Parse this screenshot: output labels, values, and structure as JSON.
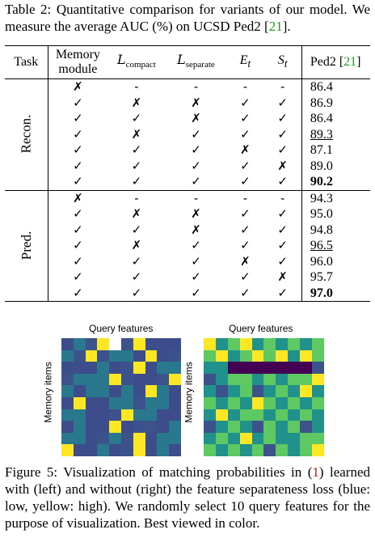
{
  "table_caption": {
    "label": "Table 2:",
    "text_before_cite": "Quantitative comparison for variants of our model. We measure the average AUC (%) on UCSD Ped2 [",
    "cite": "21",
    "text_after_cite": "]."
  },
  "table": {
    "headers": {
      "task": "Task",
      "memory_line1": "Memory",
      "memory_line2": "module",
      "compact_main": "L",
      "compact_sub": "compact",
      "separate_main": "L",
      "separate_sub": "separate",
      "e_main": "E",
      "e_sub": "t",
      "s_main": "S",
      "s_sub": "t",
      "ped2": "Ped2 [",
      "ped2_cite": "21",
      "ped2_close": "]"
    },
    "groups": [
      {
        "task": "Recon.",
        "rows": [
          {
            "memory": "✗",
            "compact": "-",
            "separate": "-",
            "e": "-",
            "s": "-",
            "ped2": "86.4",
            "style": ""
          },
          {
            "memory": "✓",
            "compact": "✗",
            "separate": "✗",
            "e": "✓",
            "s": "✓",
            "ped2": "86.9",
            "style": ""
          },
          {
            "memory": "✓",
            "compact": "✓",
            "separate": "✗",
            "e": "✓",
            "s": "✓",
            "ped2": "86.4",
            "style": ""
          },
          {
            "memory": "✓",
            "compact": "✗",
            "separate": "✓",
            "e": "✓",
            "s": "✓",
            "ped2": "89.3",
            "style": "second"
          },
          {
            "memory": "✓",
            "compact": "✓",
            "separate": "✓",
            "e": "✗",
            "s": "✓",
            "ped2": "87.1",
            "style": ""
          },
          {
            "memory": "✓",
            "compact": "✓",
            "separate": "✓",
            "e": "✓",
            "s": "✗",
            "ped2": "89.0",
            "style": ""
          },
          {
            "memory": "✓",
            "compact": "✓",
            "separate": "✓",
            "e": "✓",
            "s": "✓",
            "ped2": "90.2",
            "style": "best"
          }
        ]
      },
      {
        "task": "Pred.",
        "rows": [
          {
            "memory": "✗",
            "compact": "-",
            "separate": "-",
            "e": "-",
            "s": "-",
            "ped2": "94.3",
            "style": ""
          },
          {
            "memory": "✓",
            "compact": "✗",
            "separate": "✗",
            "e": "✓",
            "s": "✓",
            "ped2": "95.0",
            "style": ""
          },
          {
            "memory": "✓",
            "compact": "✓",
            "separate": "✗",
            "e": "✓",
            "s": "✓",
            "ped2": "94.8",
            "style": ""
          },
          {
            "memory": "✓",
            "compact": "✗",
            "separate": "✓",
            "e": "✓",
            "s": "✓",
            "ped2": "96.5",
            "style": "second"
          },
          {
            "memory": "✓",
            "compact": "✓",
            "separate": "✓",
            "e": "✗",
            "s": "✓",
            "ped2": "96.0",
            "style": ""
          },
          {
            "memory": "✓",
            "compact": "✓",
            "separate": "✓",
            "e": "✓",
            "s": "✗",
            "ped2": "95.7",
            "style": ""
          },
          {
            "memory": "✓",
            "compact": "✓",
            "separate": "✓",
            "e": "✓",
            "s": "✓",
            "ped2": "97.0",
            "style": "best"
          }
        ]
      }
    ]
  },
  "figure": {
    "left_heatmap": {
      "title": "Query features",
      "ylabel": "Memory items",
      "colorscale": [
        "#3d4c8a",
        "#2a788e",
        "#3b528b",
        "#fde725"
      ],
      "cells": [
        [
          0,
          1,
          2,
          3,
          4,
          2,
          3,
          0,
          0,
          0
        ],
        [
          1,
          2,
          3,
          2,
          1,
          1,
          0,
          3,
          0,
          2
        ],
        [
          0,
          0,
          0,
          1,
          0,
          2,
          3,
          0,
          1,
          1
        ],
        [
          2,
          1,
          1,
          1,
          3,
          2,
          0,
          0,
          2,
          3
        ],
        [
          1,
          0,
          1,
          1,
          0,
          1,
          0,
          3,
          1,
          0
        ],
        [
          0,
          3,
          0,
          0,
          1,
          1,
          2,
          1,
          1,
          0
        ],
        [
          1,
          1,
          0,
          0,
          2,
          3,
          1,
          1,
          0,
          0
        ],
        [
          0,
          1,
          0,
          0,
          3,
          0,
          2,
          2,
          0,
          1
        ],
        [
          1,
          1,
          0,
          2,
          1,
          2,
          3,
          0,
          1,
          1
        ],
        [
          3,
          0,
          0,
          1,
          0,
          2,
          3,
          0,
          1,
          0
        ]
      ]
    },
    "right_heatmap": {
      "title": "Query features",
      "ylabel": "Memory items",
      "colorscale": [
        "#440154",
        "#3b528b",
        "#21918c",
        "#5ec962",
        "#fde725"
      ],
      "cells": [
        [
          4,
          2,
          3,
          4,
          2,
          3,
          2,
          3,
          2,
          3
        ],
        [
          3,
          4,
          2,
          3,
          4,
          3,
          4,
          2,
          4,
          3
        ],
        [
          2,
          2,
          0,
          0,
          0,
          0,
          0,
          0,
          0,
          1
        ],
        [
          1,
          2,
          3,
          3,
          2,
          3,
          2,
          3,
          3,
          4
        ],
        [
          2,
          1,
          2,
          3,
          1,
          2,
          3,
          2,
          4,
          2
        ],
        [
          3,
          2,
          3,
          2,
          4,
          3,
          2,
          3,
          2,
          3
        ],
        [
          2,
          4,
          2,
          3,
          3,
          2,
          3,
          2,
          3,
          2
        ],
        [
          1,
          2,
          3,
          2,
          1,
          3,
          2,
          3,
          1,
          2
        ],
        [
          2,
          3,
          2,
          4,
          2,
          3,
          2,
          2,
          3,
          3
        ],
        [
          3,
          2,
          3,
          2,
          3,
          1,
          3,
          2,
          3,
          4
        ]
      ]
    }
  },
  "figure_caption": {
    "label": "Figure 5:",
    "text_before_ref": "Visualization of matching probabilities in (",
    "ref": "1",
    "text_after_ref": ") learned with (left) and without (right) the feature separateness loss (blue: low, yellow: high). We randomly select 10 query features for the purpose of visualization. Best viewed in color."
  }
}
